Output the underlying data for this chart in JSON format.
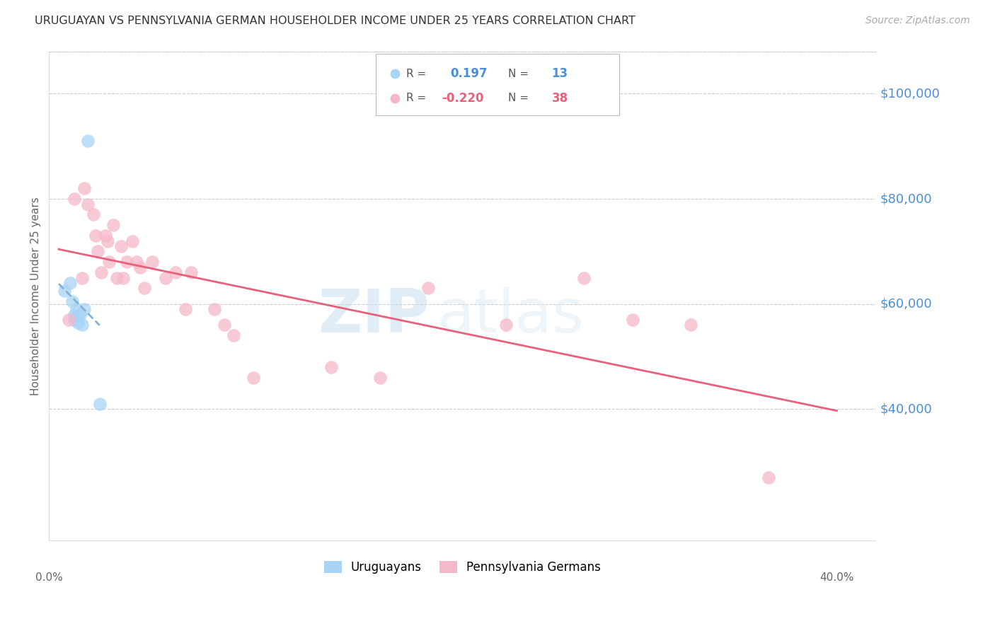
{
  "title": "URUGUAYAN VS PENNSYLVANIA GERMAN HOUSEHOLDER INCOME UNDER 25 YEARS CORRELATION CHART",
  "source": "Source: ZipAtlas.com",
  "ylabel": "Householder Income Under 25 years",
  "xlim": [
    -0.005,
    0.42
  ],
  "ylim": [
    15000,
    108000
  ],
  "yticks": [
    40000,
    60000,
    80000,
    100000
  ],
  "ytick_labels": [
    "$40,000",
    "$60,000",
    "$80,000",
    "$100,000"
  ],
  "xticks": [
    0.0,
    0.1,
    0.2,
    0.3,
    0.4
  ],
  "watermark_zip": "ZIP",
  "watermark_atlas": "atlas",
  "uruguayan_R": "0.197",
  "uruguayan_N": "13",
  "pennsylvania_R": "-0.220",
  "pennsylvania_N": "38",
  "uruguayan_color": "#a8d4f5",
  "pennsylvania_color": "#f5b8c8",
  "trend_uruguayan_color": "#7fb3d9",
  "trend_pennsylvania_color": "#e8607a",
  "uruguayan_x": [
    0.003,
    0.006,
    0.007,
    0.008,
    0.008,
    0.009,
    0.01,
    0.01,
    0.011,
    0.012,
    0.013,
    0.015,
    0.021
  ],
  "uruguayan_y": [
    62500,
    64000,
    60500,
    58000,
    57000,
    59000,
    57500,
    56500,
    58000,
    56000,
    59000,
    91000,
    41000
  ],
  "pennsylvania_x": [
    0.005,
    0.008,
    0.012,
    0.013,
    0.015,
    0.018,
    0.019,
    0.02,
    0.022,
    0.024,
    0.025,
    0.026,
    0.028,
    0.03,
    0.032,
    0.033,
    0.035,
    0.038,
    0.04,
    0.042,
    0.044,
    0.048,
    0.055,
    0.06,
    0.065,
    0.068,
    0.08,
    0.085,
    0.09,
    0.1,
    0.14,
    0.165,
    0.19,
    0.23,
    0.27,
    0.295,
    0.325,
    0.365
  ],
  "pennsylvania_y": [
    57000,
    80000,
    65000,
    82000,
    79000,
    77000,
    73000,
    70000,
    66000,
    73000,
    72000,
    68000,
    75000,
    65000,
    71000,
    65000,
    68000,
    72000,
    68000,
    67000,
    63000,
    68000,
    65000,
    66000,
    59000,
    66000,
    59000,
    56000,
    54000,
    46000,
    48000,
    46000,
    63000,
    56000,
    65000,
    57000,
    56000,
    27000
  ]
}
